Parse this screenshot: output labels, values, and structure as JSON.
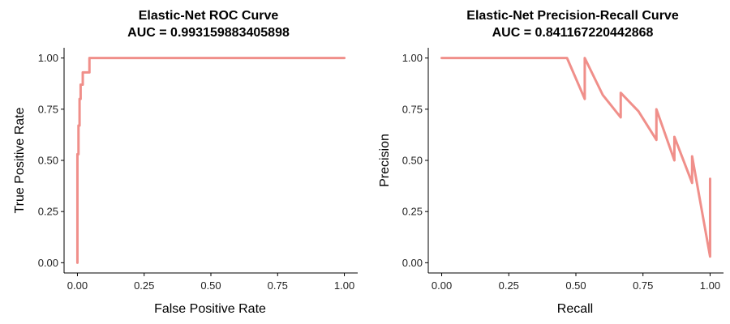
{
  "figure": {
    "background": "#ffffff",
    "line_color": "#f08f8a"
  },
  "chart_data": [
    {
      "type": "line",
      "title": "Elastic-Net ROC Curve",
      "subtitle": "AUC =  0.993159883405898",
      "xlabel": "False Positive Rate",
      "ylabel": "True Positive Rate",
      "xlim": [
        -0.05,
        1.05
      ],
      "ylim": [
        -0.05,
        1.05
      ],
      "xticks": [
        "0.00",
        "0.25",
        "0.50",
        "0.75",
        "1.00"
      ],
      "yticks": [
        "0.00",
        "0.25",
        "0.50",
        "0.75",
        "1.00"
      ],
      "grid": false,
      "series": [
        {
          "x": [
            0.0,
            0.0,
            0.004,
            0.004,
            0.008,
            0.008,
            0.012,
            0.012,
            0.02,
            0.02,
            0.03,
            0.03,
            0.045,
            0.045,
            1.0
          ],
          "y": [
            0.0,
            0.53,
            0.53,
            0.67,
            0.67,
            0.8,
            0.8,
            0.87,
            0.87,
            0.93,
            0.93,
            0.93,
            0.93,
            1.0,
            1.0
          ]
        }
      ]
    },
    {
      "type": "line",
      "title": "Elastic-Net Precision-Recall Curve",
      "subtitle": "AUC =  0.841167220442868",
      "xlabel": "Recall",
      "ylabel": "Precision",
      "xlim": [
        -0.05,
        1.05
      ],
      "ylim": [
        -0.05,
        1.05
      ],
      "xticks": [
        "0.00",
        "0.25",
        "0.50",
        "0.75",
        "1.00"
      ],
      "yticks": [
        "0.00",
        "0.25",
        "0.50",
        "0.75",
        "1.00"
      ],
      "grid": false,
      "series": [
        {
          "x": [
            0.0,
            0.467,
            0.533,
            0.533,
            0.6,
            0.667,
            0.667,
            0.733,
            0.8,
            0.8,
            0.867,
            0.867,
            0.933,
            0.933,
            1.0,
            1.0
          ],
          "y": [
            1.0,
            1.0,
            0.8,
            1.0,
            0.82,
            0.71,
            0.83,
            0.74,
            0.6,
            0.75,
            0.5,
            0.615,
            0.39,
            0.52,
            0.03,
            0.41
          ]
        }
      ]
    }
  ]
}
